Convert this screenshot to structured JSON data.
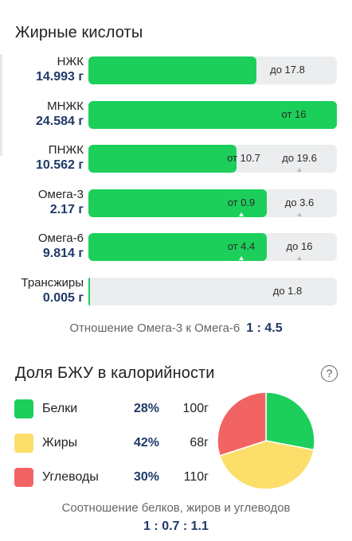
{
  "fatty_acids": {
    "title": "Жирные кислоты",
    "rows": [
      {
        "name": "НЖК",
        "value": "14.993 г",
        "fill_fraction": 0.676,
        "min_text": "",
        "max_text": "до 17.8",
        "min_marker": false,
        "max_marker": false
      },
      {
        "name": "МНЖК",
        "value": "24.584 г",
        "fill_fraction": 1.0,
        "min_text": "от 16",
        "max_text": "",
        "min_marker": false,
        "max_marker": false
      },
      {
        "name": "ПНЖК",
        "value": "10.562 г",
        "fill_fraction": 0.596,
        "min_text": "от 10.7",
        "max_text": "до 19.6",
        "min_marker": false,
        "max_marker": true
      },
      {
        "name": "Омега-3",
        "value": "2.17 г",
        "fill_fraction": 0.718,
        "min_text": "от 0.9",
        "max_text": "до 3.6",
        "min_marker": true,
        "max_marker": true
      },
      {
        "name": "Омега-6",
        "value": "9.814 г",
        "fill_fraction": 0.718,
        "min_text": "от 4.4",
        "max_text": "до 16",
        "min_marker": true,
        "max_marker": true
      },
      {
        "name": "Трансжиры",
        "value": "0.005 г",
        "fill_fraction": 0.003,
        "min_text": "",
        "max_text": "до 1.8",
        "min_marker": false,
        "max_marker": false
      }
    ],
    "ratio_label": "Отношение Омега-3 к Омега-6",
    "ratio_value": "1 : 4.5"
  },
  "macros": {
    "title": "Доля БЖУ в калорийности",
    "help_icon": "?",
    "items": [
      {
        "name": "Белки",
        "percent": "28%",
        "grams": "100г",
        "color": "#1ccf5a"
      },
      {
        "name": "Жиры",
        "percent": "42%",
        "grams": "68г",
        "color": "#fbdf6a"
      },
      {
        "name": "Углеводы",
        "percent": "30%",
        "grams": "110г",
        "color": "#f26464"
      }
    ],
    "pie_shares": [
      28,
      42,
      30
    ],
    "footer_label": "Соотношение белков, жиров и углеводов",
    "footer_ratio": "1 : 0.7 : 1.1"
  }
}
